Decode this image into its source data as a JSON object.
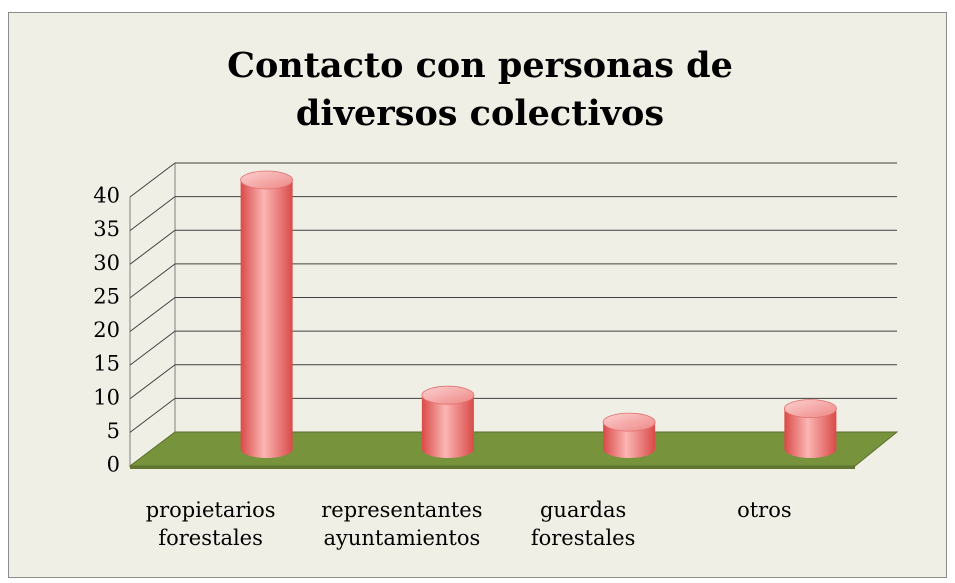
{
  "chart_data": {
    "type": "bar3d",
    "title": "Contacto con personas de diversos colectivos",
    "categories": [
      "propietarios forestales",
      "representantes ayuntamientos",
      "guardas forestales",
      "otros"
    ],
    "values": [
      40,
      8,
      4,
      6
    ],
    "color": "#e46c6a",
    "ylim": [
      0,
      40
    ],
    "yticks": [
      0,
      5,
      10,
      15,
      20,
      25,
      30,
      35,
      40
    ],
    "grid": true
  }
}
